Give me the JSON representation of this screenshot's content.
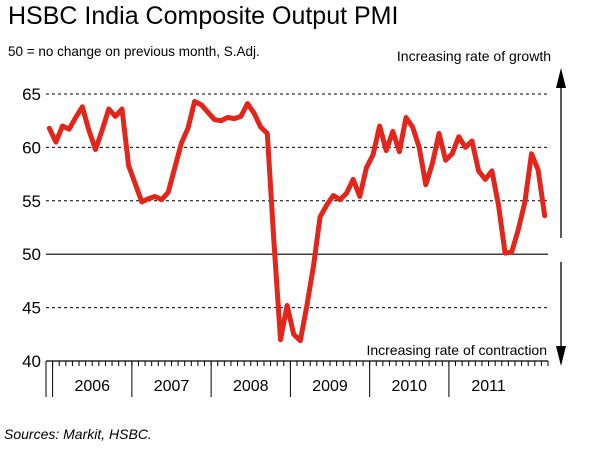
{
  "chart_data": {
    "type": "line",
    "title": "HSBC India Composite Output PMI",
    "subtitle": "50 = no change on previous month, S.Adj.",
    "source": "Sources: Markit, HSBC.",
    "annotations": {
      "up": "Increasing rate of growth",
      "down": "Increasing rate of contraction"
    },
    "ylim": [
      40,
      65
    ],
    "yticks": [
      "40",
      "45",
      "50",
      "55",
      "60",
      "65"
    ],
    "years": [
      "2006",
      "2007",
      "2008",
      "2009",
      "2010",
      "2011"
    ],
    "x_start": "2005-12",
    "reference_line": 50,
    "grid": "dashed horizontal",
    "series": [
      {
        "color": "#e3251b",
        "values": [
          61.8,
          60.5,
          62.0,
          61.7,
          62.8,
          63.8,
          61.6,
          59.8,
          61.6,
          63.6,
          62.9,
          63.6,
          58.3,
          56.6,
          54.9,
          55.2,
          55.4,
          55.1,
          55.8,
          58.1,
          60.4,
          61.8,
          64.3,
          64.0,
          63.3,
          62.6,
          62.5,
          62.8,
          62.7,
          62.9,
          64.1,
          63.2,
          61.9,
          61.3,
          51.2,
          42.0,
          45.2,
          42.5,
          41.9,
          45.2,
          48.9,
          53.5,
          54.6,
          55.5,
          55.1,
          55.7,
          57.0,
          55.4,
          58.1,
          59.3,
          62.0,
          59.7,
          61.5,
          59.6,
          62.8,
          61.9,
          60.0,
          56.5,
          58.5,
          61.3,
          58.8,
          59.4,
          61.0,
          60.0,
          60.6,
          57.8,
          57.0,
          57.8,
          54.6,
          50.1,
          50.2,
          52.3,
          54.9,
          59.4,
          57.9,
          53.6
        ]
      }
    ]
  }
}
